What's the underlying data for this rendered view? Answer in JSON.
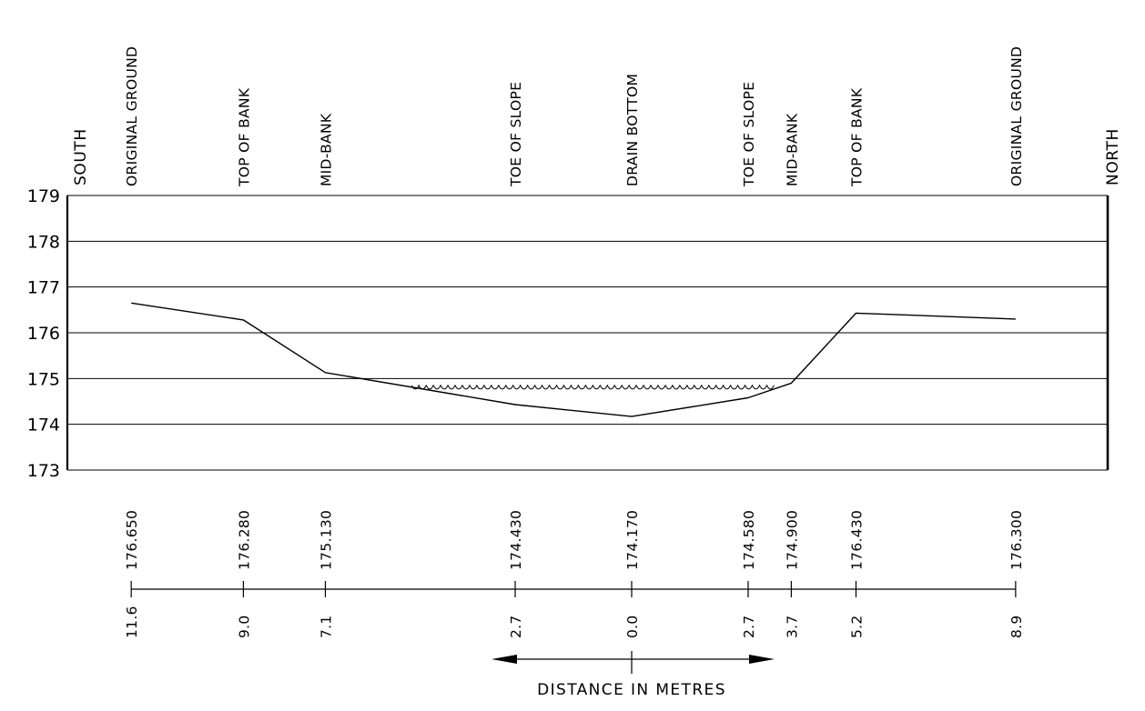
{
  "chart_data": {
    "type": "line",
    "title": "",
    "xlabel": "DISTANCE IN METRES",
    "ylabel": "",
    "ylim": [
      173,
      179
    ],
    "y_ticks": [
      "173",
      "174",
      "175",
      "176",
      "177",
      "178",
      "179"
    ],
    "grid": true,
    "left_edge_label": "SOUTH",
    "right_edge_label": "NORTH",
    "stations": [
      {
        "feature": "ORIGINAL GROUND",
        "elevation": "176.650",
        "distance": "11.6",
        "x": -11.6,
        "y": 176.65
      },
      {
        "feature": "TOP OF BANK",
        "elevation": "176.280",
        "distance": "9.0",
        "x": -9.0,
        "y": 176.28
      },
      {
        "feature": "MID-BANK",
        "elevation": "175.130",
        "distance": "7.1",
        "x": -7.1,
        "y": 175.13
      },
      {
        "feature": "TOE OF SLOPE",
        "elevation": "174.430",
        "distance": "2.7",
        "x": -2.7,
        "y": 174.43
      },
      {
        "feature": "DRAIN BOTTOM",
        "elevation": "174.170",
        "distance": "0.0",
        "x": 0.0,
        "y": 174.17
      },
      {
        "feature": "TOE OF SLOPE",
        "elevation": "174.580",
        "distance": "2.7",
        "x": 2.7,
        "y": 174.58
      },
      {
        "feature": "MID-BANK",
        "elevation": "174.900",
        "distance": "3.7",
        "x": 3.7,
        "y": 174.9
      },
      {
        "feature": "TOP OF BANK",
        "elevation": "176.430",
        "distance": "5.2",
        "x": 5.2,
        "y": 176.43
      },
      {
        "feature": "ORIGINAL GROUND",
        "elevation": "176.300",
        "distance": "8.9",
        "x": 8.9,
        "y": 176.3
      }
    ],
    "water_level": {
      "elevation": 174.85,
      "x_start": -5.1,
      "x_end": 3.3
    }
  }
}
